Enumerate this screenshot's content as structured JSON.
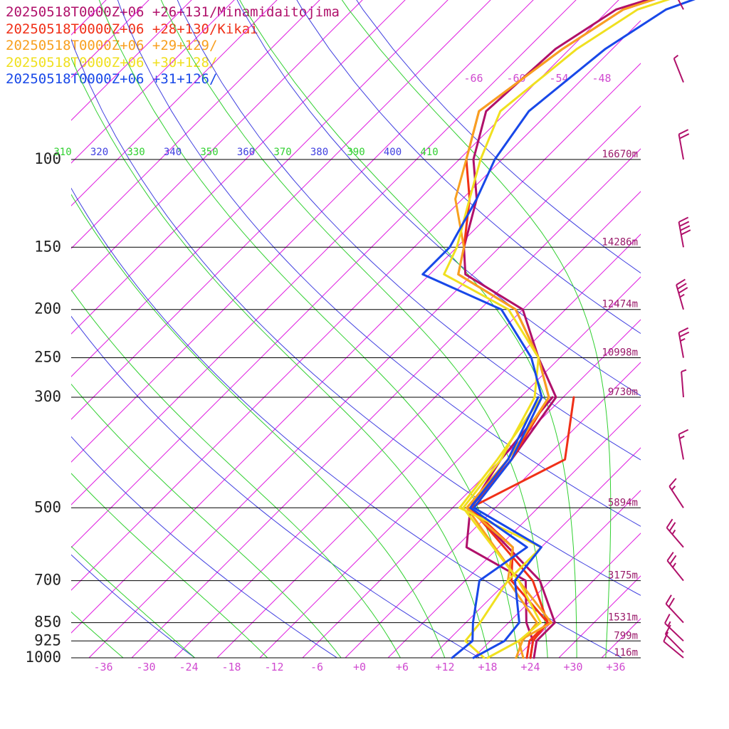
{
  "colors": {
    "isobar": "#000000",
    "isotherm": "#e020e0",
    "dry_adiabat": "#4040e0",
    "moist_adiabat": "#30d030",
    "height_label": "#9a1a6a",
    "wind_barb": "#b0106a"
  },
  "chart_data": {
    "type": "line",
    "title": "",
    "xlabel": "",
    "ylabel": "",
    "pressure_ticks": [
      "100",
      "150",
      "200",
      "250",
      "300",
      "500",
      "700",
      "850",
      "925",
      "1000"
    ],
    "pressure_levels_hpa": [
      100,
      150,
      200,
      250,
      300,
      500,
      700,
      850,
      925,
      1000
    ],
    "heights": [
      "16670m",
      "14286m",
      "12474m",
      "10998m",
      "9730m",
      "5894m",
      "3175m",
      "1531m",
      "799m",
      "116m"
    ],
    "temperature_ticks": [
      "-36",
      "-30",
      "-24",
      "-18",
      "-12",
      "-6",
      "+0",
      "+6",
      "+12",
      "+18",
      "+24",
      "+30",
      "+36"
    ],
    "upper_isotherm_labels": [
      "-66",
      "-60",
      "-54",
      "-48"
    ],
    "theta_labels": [
      {
        "text": "310",
        "kind": "moist"
      },
      {
        "text": "320",
        "kind": "dry"
      },
      {
        "text": "330",
        "kind": "moist"
      },
      {
        "text": "340",
        "kind": "dry"
      },
      {
        "text": "350",
        "kind": "moist"
      },
      {
        "text": "360",
        "kind": "dry"
      },
      {
        "text": "370",
        "kind": "moist"
      },
      {
        "text": "380",
        "kind": "dry"
      },
      {
        "text": "390",
        "kind": "moist"
      },
      {
        "text": "400",
        "kind": "dry"
      },
      {
        "text": "410",
        "kind": "moist"
      }
    ],
    "grid": true,
    "series": [
      {
        "name": "20250518T0000Z+06 +26+131/Minamidaitojima",
        "color": "#b0106a",
        "temperature": [
          [
            1000,
            24.5
          ],
          [
            925,
            22.5
          ],
          [
            850,
            22.5
          ],
          [
            700,
            14.5
          ],
          [
            500,
            -5.5
          ],
          [
            400,
            -6.5
          ],
          [
            300,
            -9
          ],
          [
            250,
            -17
          ],
          [
            200,
            -26
          ],
          [
            170,
            -39
          ],
          [
            150,
            -43
          ],
          [
            120,
            -48
          ],
          [
            100,
            -54
          ],
          [
            80,
            -59
          ],
          [
            60,
            -58
          ],
          [
            50,
            -55
          ],
          [
            40,
            -40
          ]
        ],
        "dewpoint": [
          [
            1000,
            24
          ],
          [
            925,
            22
          ],
          [
            850,
            18.5
          ],
          [
            700,
            12.5
          ],
          [
            600,
            -0.5
          ],
          [
            500,
            -5.5
          ],
          [
            400,
            -8
          ],
          [
            300,
            -9.5
          ]
        ]
      },
      {
        "name": "20250518T0000Z+06 +28+130/Kikai",
        "color": "#f03018",
        "temperature": [
          [
            1000,
            24
          ],
          [
            925,
            22
          ],
          [
            850,
            21.5
          ],
          [
            700,
            13.5
          ],
          [
            500,
            -5.5
          ],
          [
            400,
            -6.5
          ],
          [
            300,
            -10
          ],
          [
            250,
            -17
          ],
          [
            200,
            -27
          ],
          [
            170,
            -40
          ],
          [
            150,
            -43
          ],
          [
            120,
            -49
          ],
          [
            100,
            -55
          ],
          [
            80,
            -60
          ],
          [
            60,
            -57
          ],
          [
            50,
            -54
          ],
          [
            40,
            -40
          ]
        ],
        "dewpoint": [
          [
            1000,
            23.5
          ],
          [
            925,
            21.5
          ],
          [
            850,
            21.5
          ],
          [
            700,
            10.5
          ],
          [
            600,
            6
          ],
          [
            500,
            -5.5
          ],
          [
            400,
            1
          ],
          [
            300,
            -6.5
          ]
        ]
      },
      {
        "name": "20250518T0000Z+06 +29+129/",
        "color": "#f8a020",
        "temperature": [
          [
            1000,
            23
          ],
          [
            925,
            20
          ],
          [
            850,
            22
          ],
          [
            700,
            11.5
          ],
          [
            500,
            -6
          ],
          [
            400,
            -7
          ],
          [
            300,
            -10
          ],
          [
            250,
            -17
          ],
          [
            200,
            -27
          ],
          [
            170,
            -40
          ],
          [
            150,
            -43
          ],
          [
            120,
            -51
          ],
          [
            100,
            -55
          ],
          [
            80,
            -60
          ],
          [
            60,
            -57
          ],
          [
            50,
            -54
          ],
          [
            40,
            -40
          ]
        ],
        "dewpoint": [
          [
            1000,
            22
          ],
          [
            925,
            20.5
          ],
          [
            850,
            20
          ],
          [
            700,
            10
          ],
          [
            600,
            6
          ],
          [
            500,
            -6
          ],
          [
            400,
            -7
          ],
          [
            300,
            -10
          ]
        ]
      },
      {
        "name": "20250518T0000Z+06 +30+128/",
        "color": "#f0e020",
        "temperature": [
          [
            1000,
            18
          ],
          [
            925,
            20
          ],
          [
            850,
            20.5
          ],
          [
            700,
            11.5
          ],
          [
            500,
            -6.5
          ],
          [
            400,
            -8
          ],
          [
            300,
            -12
          ],
          [
            250,
            -17
          ],
          [
            200,
            -28
          ],
          [
            170,
            -42
          ],
          [
            150,
            -44
          ],
          [
            120,
            -49
          ],
          [
            100,
            -53
          ],
          [
            80,
            -57
          ],
          [
            60,
            -55
          ],
          [
            50,
            -52
          ],
          [
            40,
            -38
          ]
        ],
        "dewpoint": [
          [
            1000,
            17.5
          ],
          [
            925,
            12.5
          ],
          [
            850,
            12
          ],
          [
            700,
            10
          ],
          [
            600,
            10
          ],
          [
            500,
            -7
          ],
          [
            400,
            -8.5
          ],
          [
            300,
            -11
          ]
        ]
      },
      {
        "name": "20250518T0000Z+06 +31+126/",
        "color": "#1848e8",
        "temperature": [
          [
            1000,
            16
          ],
          [
            925,
            18
          ],
          [
            850,
            17.5
          ],
          [
            700,
            11
          ],
          [
            600,
            10
          ],
          [
            500,
            -5
          ],
          [
            400,
            -6.5
          ],
          [
            300,
            -11
          ],
          [
            250,
            -18
          ],
          [
            200,
            -29
          ],
          [
            170,
            -45
          ],
          [
            150,
            -45
          ],
          [
            120,
            -48
          ],
          [
            100,
            -51
          ],
          [
            80,
            -53
          ],
          [
            60,
            -51
          ],
          [
            50,
            -48
          ],
          [
            40,
            -36
          ]
        ],
        "dewpoint": [
          [
            1000,
            13
          ],
          [
            925,
            13.5
          ],
          [
            850,
            11
          ],
          [
            700,
            6
          ],
          [
            600,
            8
          ],
          [
            500,
            -5.5
          ],
          [
            400,
            -7
          ],
          [
            300,
            -11.5
          ]
        ]
      }
    ],
    "wind_barbs": [
      {
        "p": 1000,
        "speed_kt": 10,
        "x_frac": 0.05
      },
      {
        "p": 975,
        "speed_kt": 10,
        "x_frac": 0.15
      },
      {
        "p": 925,
        "speed_kt": 15,
        "x_frac": 0.12
      },
      {
        "p": 850,
        "speed_kt": 20,
        "x_frac": 0.18
      },
      {
        "p": 700,
        "speed_kt": 25,
        "x_frac": 0.25
      },
      {
        "p": 600,
        "speed_kt": 25,
        "x_frac": 0.22
      },
      {
        "p": 500,
        "speed_kt": 15,
        "x_frac": 0.35
      },
      {
        "p": 400,
        "speed_kt": 15,
        "x_frac": 0.75
      },
      {
        "p": 300,
        "speed_kt": 5,
        "x_frac": 0.85
      },
      {
        "p": 250,
        "speed_kt": 25,
        "x_frac": 0.75
      },
      {
        "p": 200,
        "speed_kt": 35,
        "x_frac": 0.65
      },
      {
        "p": 150,
        "speed_kt": 40,
        "x_frac": 0.75
      },
      {
        "p": 100,
        "speed_kt": 20,
        "x_frac": 0.75
      },
      {
        "p": 70,
        "speed_kt": 5,
        "x_frac": 0.55
      },
      {
        "p": 50,
        "speed_kt": 5,
        "x_frac": 0.45
      }
    ]
  }
}
